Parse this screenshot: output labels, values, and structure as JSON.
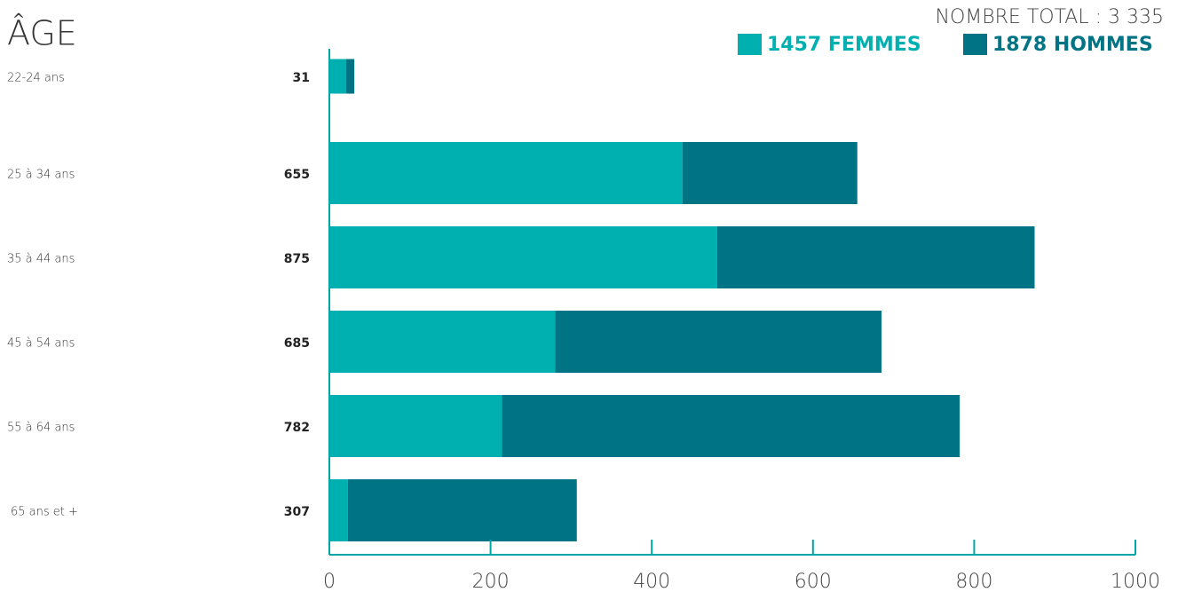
{
  "chart_data": {
    "type": "stacked-barh",
    "title": "ÂGE",
    "subtitle": "NOMBRE TOTAL : 3 335",
    "categories": [
      "22-24 ans",
      "25 à 34 ans",
      "35 à 44 ans",
      "45 à 54 ans",
      "55 à 64 ans",
      "65 ans et +"
    ],
    "totals": [
      31,
      655,
      875,
      685,
      782,
      307
    ],
    "series": [
      {
        "name": "1457 FEMMES",
        "color": "#00b0b0",
        "values": [
          21,
          438,
          481,
          280,
          214,
          23
        ]
      },
      {
        "name": "1878 HOMMES",
        "color": "#007385",
        "values": [
          10,
          217,
          394,
          405,
          568,
          284
        ]
      }
    ],
    "xlim": [
      0,
      1000
    ],
    "xticks": [
      0,
      200,
      400,
      600,
      800,
      1000
    ],
    "axis_color": "#00a6a6"
  }
}
